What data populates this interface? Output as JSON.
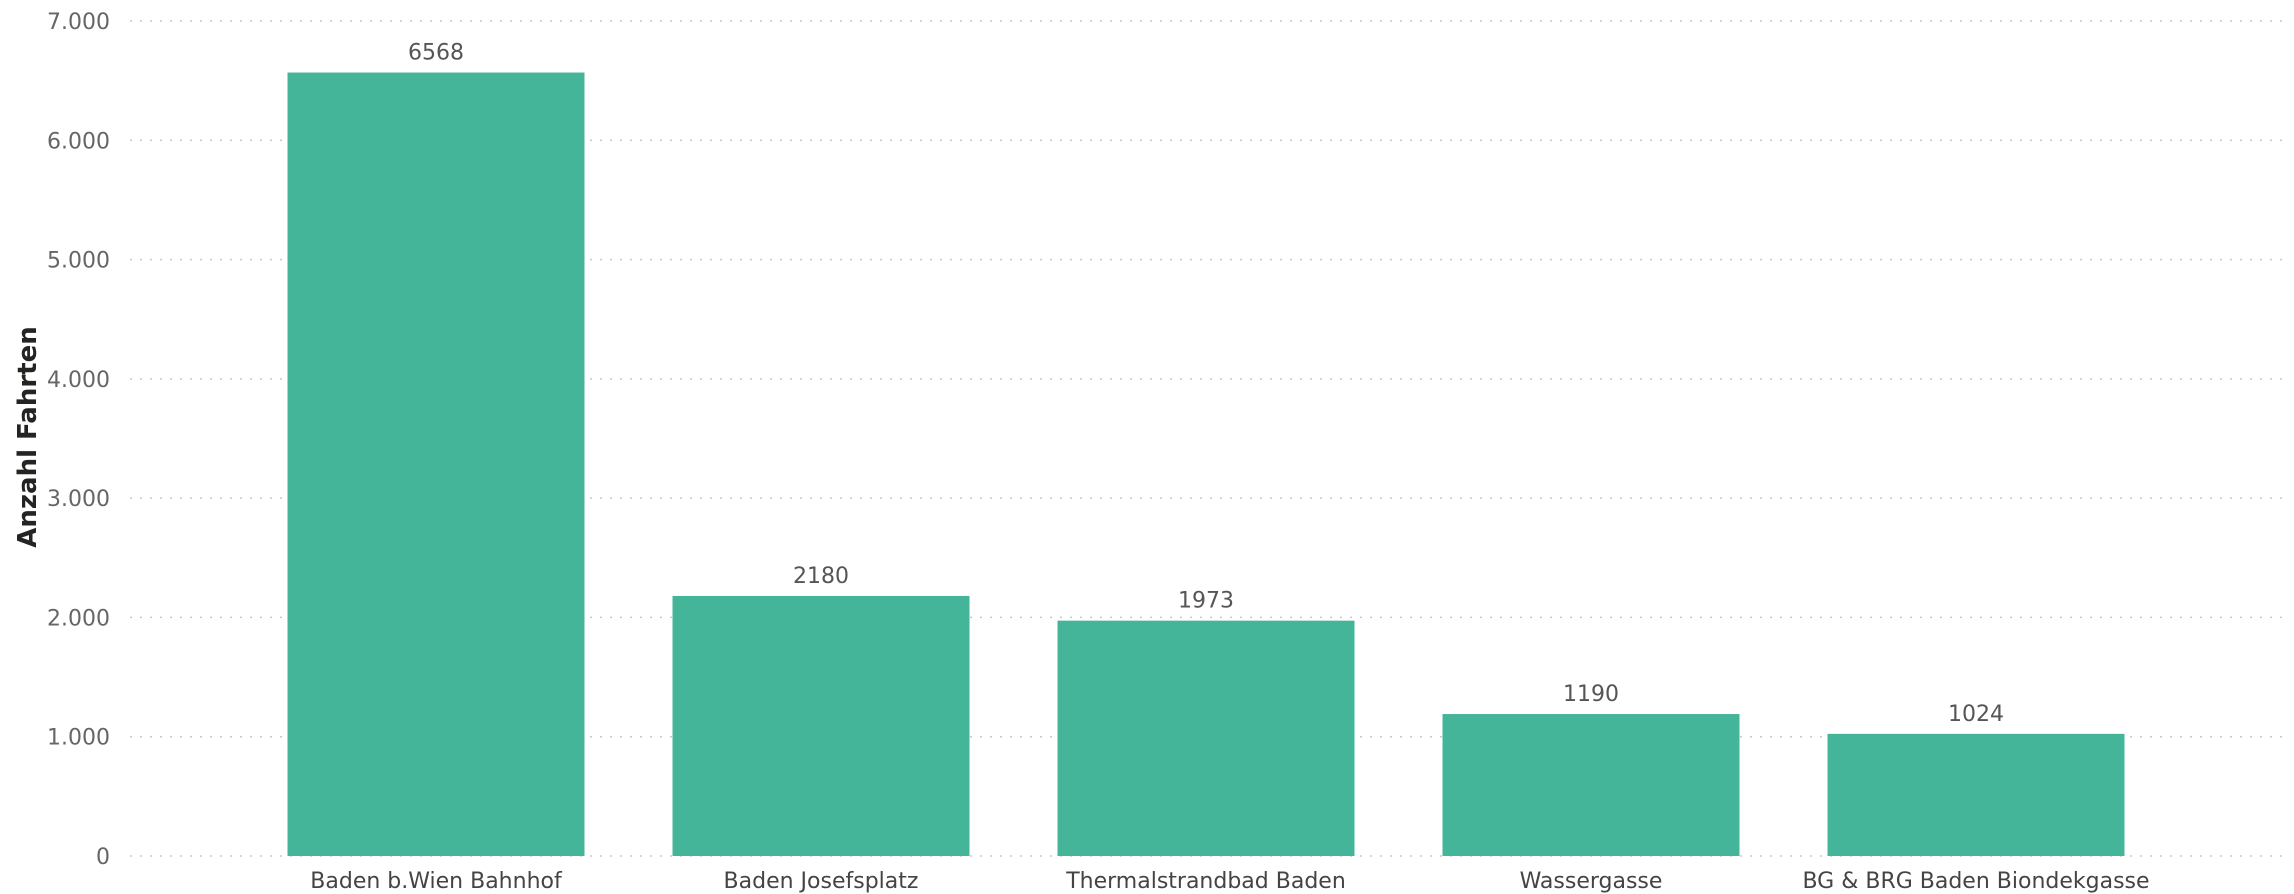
{
  "chart_data": {
    "type": "bar",
    "title": "",
    "xlabel": "",
    "ylabel": "Anzahl Fahrten",
    "ylim": [
      0,
      7000
    ],
    "yticks": [
      0,
      1000,
      2000,
      3000,
      4000,
      5000,
      6000,
      7000
    ],
    "ytick_labels": [
      "0",
      "1.000",
      "2.000",
      "3.000",
      "4.000",
      "5.000",
      "6.000",
      "7.000"
    ],
    "grid": true,
    "legend": "none",
    "categories": [
      "Baden b.Wien Bahnhof",
      "Baden Josefsplatz",
      "Thermalstrandbad Baden",
      "Wassergasse",
      "BG & BRG Baden Biondekgasse"
    ],
    "values": [
      6568,
      2180,
      1973,
      1190,
      1024
    ],
    "data_labels": [
      "6568",
      "2180",
      "1973",
      "1190",
      "1024"
    ],
    "bar_color": "#45B59A"
  }
}
